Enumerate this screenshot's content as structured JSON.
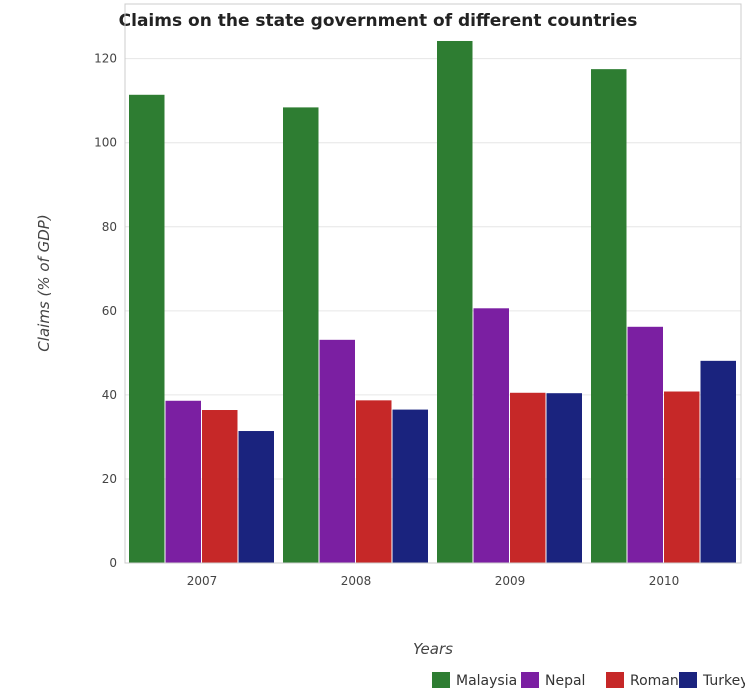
{
  "chart_data": {
    "type": "bar",
    "title": "Claims on the state government of different countries",
    "xlabel": "Years",
    "ylabel": "Claims (% of GDP)",
    "categories": [
      "2007",
      "2008",
      "2009",
      "2010"
    ],
    "ylim": [
      0,
      133
    ],
    "yticks": [
      0,
      20,
      40,
      60,
      80,
      100,
      120
    ],
    "grid": true,
    "legend_position": "bottom-right",
    "series": [
      {
        "name": "Malaysia",
        "color": "#2e7d32",
        "values": [
          111.4,
          108.4,
          124.2,
          117.5
        ]
      },
      {
        "name": "Nepal",
        "color": "#7b1fa2",
        "values": [
          38.6,
          53.1,
          60.6,
          56.2
        ]
      },
      {
        "name": "Romania",
        "color": "#c62828",
        "values": [
          36.4,
          38.7,
          40.5,
          40.8
        ]
      },
      {
        "name": "Turkey",
        "color": "#1a237e",
        "values": [
          31.4,
          36.5,
          40.4,
          48.1
        ]
      }
    ]
  }
}
